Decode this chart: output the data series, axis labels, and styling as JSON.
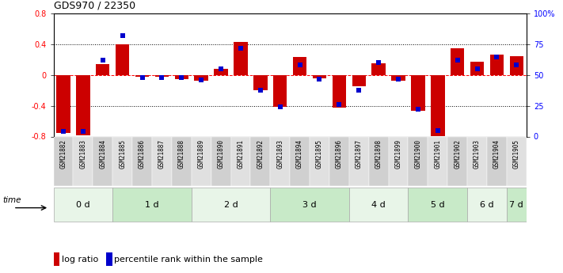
{
  "title": "GDS970 / 22350",
  "samples": [
    "GSM21882",
    "GSM21883",
    "GSM21884",
    "GSM21885",
    "GSM21886",
    "GSM21887",
    "GSM21888",
    "GSM21889",
    "GSM21890",
    "GSM21891",
    "GSM21892",
    "GSM21893",
    "GSM21894",
    "GSM21895",
    "GSM21896",
    "GSM21897",
    "GSM21898",
    "GSM21899",
    "GSM21900",
    "GSM21901",
    "GSM21902",
    "GSM21903",
    "GSM21904",
    "GSM21905"
  ],
  "log_ratio": [
    -0.75,
    -0.78,
    0.14,
    0.4,
    -0.02,
    -0.02,
    -0.05,
    -0.07,
    0.08,
    0.43,
    -0.2,
    -0.41,
    0.24,
    -0.04,
    -0.42,
    -0.15,
    0.15,
    -0.07,
    -0.47,
    -0.79,
    0.35,
    0.17,
    0.27,
    0.25
  ],
  "percentile": [
    4,
    4,
    62,
    82,
    48,
    48,
    48,
    46,
    55,
    72,
    38,
    24,
    58,
    47,
    26,
    38,
    60,
    47,
    22,
    5,
    62,
    55,
    65,
    58
  ],
  "groups": {
    "0 d": [
      0,
      1,
      2
    ],
    "1 d": [
      3,
      4,
      5,
      6
    ],
    "2 d": [
      7,
      8,
      9,
      10
    ],
    "3 d": [
      11,
      12,
      13,
      14
    ],
    "4 d": [
      15,
      16,
      17
    ],
    "5 d": [
      18,
      19,
      20
    ],
    "6 d": [
      21,
      22
    ],
    "7 d": [
      23
    ]
  },
  "group_order": [
    "0 d",
    "1 d",
    "2 d",
    "3 d",
    "4 d",
    "5 d",
    "6 d",
    "7 d"
  ],
  "group_colors_alt": [
    "#e8f5e8",
    "#c8eac8"
  ],
  "sample_col_colors_alt": [
    "#d0d0d0",
    "#e0e0e0"
  ],
  "bar_color": "#cc0000",
  "dot_color": "#0000cc",
  "ylim": [
    -0.8,
    0.8
  ],
  "y2lim": [
    0,
    100
  ],
  "yticks": [
    -0.8,
    -0.4,
    0.0,
    0.4,
    0.8
  ],
  "y2ticks": [
    0,
    25,
    50,
    75,
    100
  ],
  "y2ticklabels": [
    "0",
    "25",
    "50",
    "75",
    "100%"
  ],
  "hlines": [
    -0.4,
    0.4
  ],
  "legend_logratio": "log ratio",
  "legend_percentile": "percentile rank within the sample",
  "bar_width": 0.7
}
